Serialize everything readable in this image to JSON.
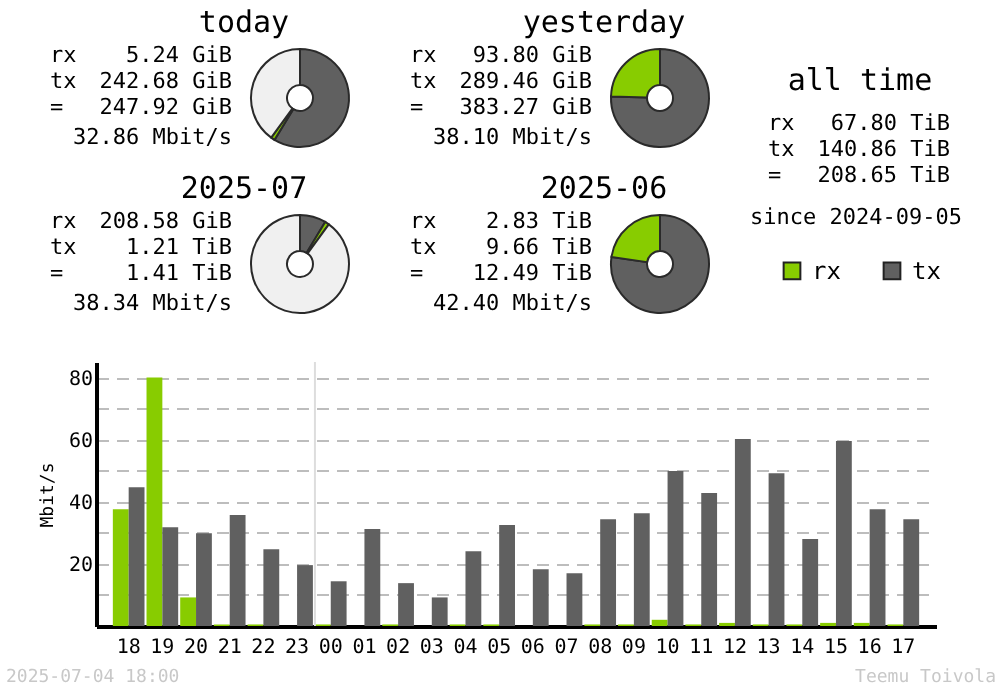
{
  "chart_data": [
    {
      "type": "donut",
      "title": "today",
      "categories": [
        null,
        null,
        null
      ],
      "values": [
        58.7,
        1.3,
        40
      ],
      "colors": [
        "#606060",
        "#88cc00",
        "#f0f0f0"
      ],
      "annotations": [
        "rx 5.24 GiB",
        "tx 242.68 GiB",
        "= 247.92 GiB",
        "32.86 Mbit/s"
      ]
    },
    {
      "type": "donut",
      "title": "yesterday",
      "categories": [
        null,
        null
      ],
      "values": [
        75.5,
        24.5
      ],
      "colors": [
        "#606060",
        "#88cc00"
      ],
      "annotations": [
        "rx 93.80 GiB",
        "tx 289.46 GiB",
        "= 383.27 GiB",
        "38.10 Mbit/s"
      ]
    },
    {
      "type": "other",
      "title": "all time",
      "annotations": [
        "rx 67.80 TiB",
        "tx 140.86 TiB",
        "= 208.65 TiB",
        "since 2024-09-05"
      ]
    },
    {
      "type": "donut",
      "title": "2025-07",
      "categories": [
        null,
        null,
        null
      ],
      "values": [
        8.6,
        1.4,
        90
      ],
      "colors": [
        "#606060",
        "#88cc00",
        "#f0f0f0"
      ],
      "annotations": [
        "rx 208.58 GiB",
        "tx 1.21 TiB",
        "= 1.41 TiB",
        "38.34 Mbit/s"
      ]
    },
    {
      "type": "donut",
      "title": "2025-06",
      "categories": [
        null,
        null
      ],
      "values": [
        77.3,
        22.7
      ],
      "colors": [
        "#606060",
        "#88cc00"
      ],
      "annotations": [
        "rx 2.83 TiB",
        "tx 9.66 TiB",
        "= 12.49 TiB",
        "42.40 Mbit/s"
      ]
    },
    {
      "type": "bar",
      "ylabel": "Mbit/s",
      "categories": [
        "18",
        "19",
        "20",
        "21",
        "22",
        "23",
        "00",
        "01",
        "02",
        "03",
        "04",
        "05",
        "06",
        "07",
        "08",
        "09",
        "10",
        "11",
        "12",
        "13",
        "14",
        "15",
        "16",
        "17"
      ],
      "series": [
        {
          "name": "rx",
          "color": "#88cc00",
          "values": [
            37.6,
            80,
            9.2,
            0.5,
            0.5,
            0,
            0.5,
            0,
            0.5,
            0,
            0.5,
            0.5,
            0,
            0,
            0.5,
            0.5,
            2,
            0.5,
            1,
            0.5,
            0.5,
            1,
            1,
            0.5
          ]
        },
        {
          "name": "tx",
          "color": "#606060",
          "values": [
            44.7,
            31.8,
            29.9,
            35.7,
            24.7,
            19.6,
            14.4,
            31.2,
            13.8,
            9.2,
            24.1,
            32.5,
            18.3,
            17.0,
            34.4,
            36.3,
            49.9,
            42.8,
            60.2,
            49.2,
            28.0,
            59.6,
            37.6,
            34.4
          ]
        }
      ],
      "ylim": [
        0,
        85
      ],
      "yticks": [
        {
          "value": 10,
          "label": null
        },
        20,
        {
          "value": 30,
          "label": null
        },
        40,
        {
          "value": 50,
          "label": null
        },
        60,
        {
          "value": 70,
          "label": null
        },
        80
      ],
      "grid": "y",
      "legend": "top right",
      "ref_lines": [
        {
          "axis": "x",
          "value": "00",
          "color": "#dddddd"
        }
      ],
      "annotations": [
        "2025-07-04 18:00",
        "Teemu Toivola"
      ]
    }
  ]
}
